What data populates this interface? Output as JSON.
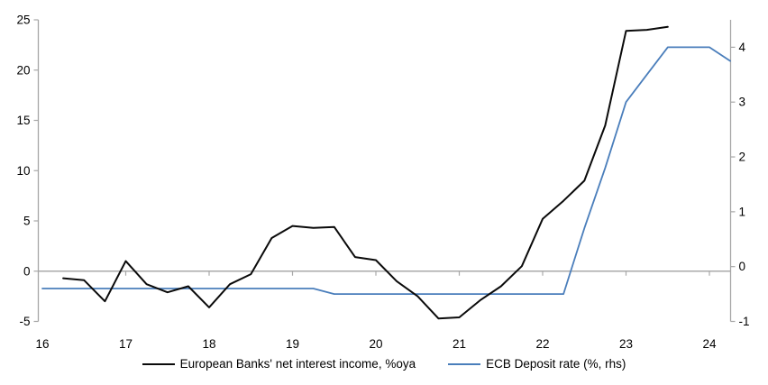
{
  "chart_data": {
    "type": "line",
    "title": "",
    "xlabel": "",
    "ylabel_left": "",
    "ylabel_right": "",
    "x_axis": {
      "ticks": [
        16,
        17,
        18,
        19,
        20,
        21,
        22,
        23,
        24
      ],
      "range": [
        16,
        24.25
      ]
    },
    "left_axis": {
      "ticks": [
        -5,
        0,
        5,
        10,
        15,
        20,
        25
      ],
      "range": [
        -5,
        25
      ]
    },
    "right_axis": {
      "ticks": [
        -1,
        0,
        1,
        2,
        3,
        4
      ],
      "range": [
        -1,
        4.5
      ]
    },
    "grid": "zero-line-only",
    "legend_position": "bottom-center",
    "colors": {
      "nii_line": "#0a0a0a",
      "ecb_line": "#4A7EBB",
      "axis_gray": "#A6A6A6",
      "zero_line_gray": "#A9A9A9",
      "text": "#000000"
    },
    "series": [
      {
        "name": "European Banks' net interest income, %oya",
        "axis": "left",
        "color": "#0a0a0a",
        "x": [
          16.25,
          16.5,
          16.75,
          17.0,
          17.25,
          17.5,
          17.75,
          18.0,
          18.25,
          18.5,
          18.75,
          19.0,
          19.25,
          19.5,
          19.75,
          20.0,
          20.25,
          20.5,
          20.75,
          21.0,
          21.25,
          21.5,
          21.75,
          22.0,
          22.25,
          22.5,
          22.75,
          23.0,
          23.25,
          23.5
        ],
        "values": [
          -0.7,
          -0.9,
          -3.0,
          1.0,
          -1.3,
          -2.1,
          -1.5,
          -3.6,
          -1.3,
          -0.3,
          3.3,
          4.5,
          4.3,
          4.4,
          1.4,
          1.1,
          -1.0,
          -2.5,
          -4.7,
          -4.6,
          -2.9,
          -1.5,
          0.5,
          5.2,
          7.0,
          9.0,
          14.5,
          23.9,
          24.0,
          24.3
        ]
      },
      {
        "name": "ECB Deposit rate (%, rhs)",
        "axis": "right",
        "color": "#4A7EBB",
        "x": [
          16.0,
          16.25,
          16.5,
          16.75,
          17.0,
          17.25,
          17.5,
          17.75,
          18.0,
          18.25,
          18.5,
          18.75,
          19.0,
          19.25,
          19.5,
          19.75,
          20.0,
          20.25,
          20.5,
          20.75,
          21.0,
          21.25,
          21.5,
          21.75,
          22.0,
          22.25,
          22.5,
          22.75,
          23.0,
          23.25,
          23.5,
          23.75,
          24.0,
          24.25
        ],
        "values": [
          -0.4,
          -0.4,
          -0.4,
          -0.4,
          -0.4,
          -0.4,
          -0.4,
          -0.4,
          -0.4,
          -0.4,
          -0.4,
          -0.4,
          -0.4,
          -0.4,
          -0.5,
          -0.5,
          -0.5,
          -0.5,
          -0.5,
          -0.5,
          -0.5,
          -0.5,
          -0.5,
          -0.5,
          -0.5,
          -0.5,
          0.7,
          1.8,
          3.0,
          3.5,
          4.0,
          4.0,
          4.0,
          3.75
        ]
      }
    ]
  },
  "legend": {
    "item1": "European Banks' net interest income, %oya",
    "item2": "ECB Deposit rate (%, rhs)"
  }
}
